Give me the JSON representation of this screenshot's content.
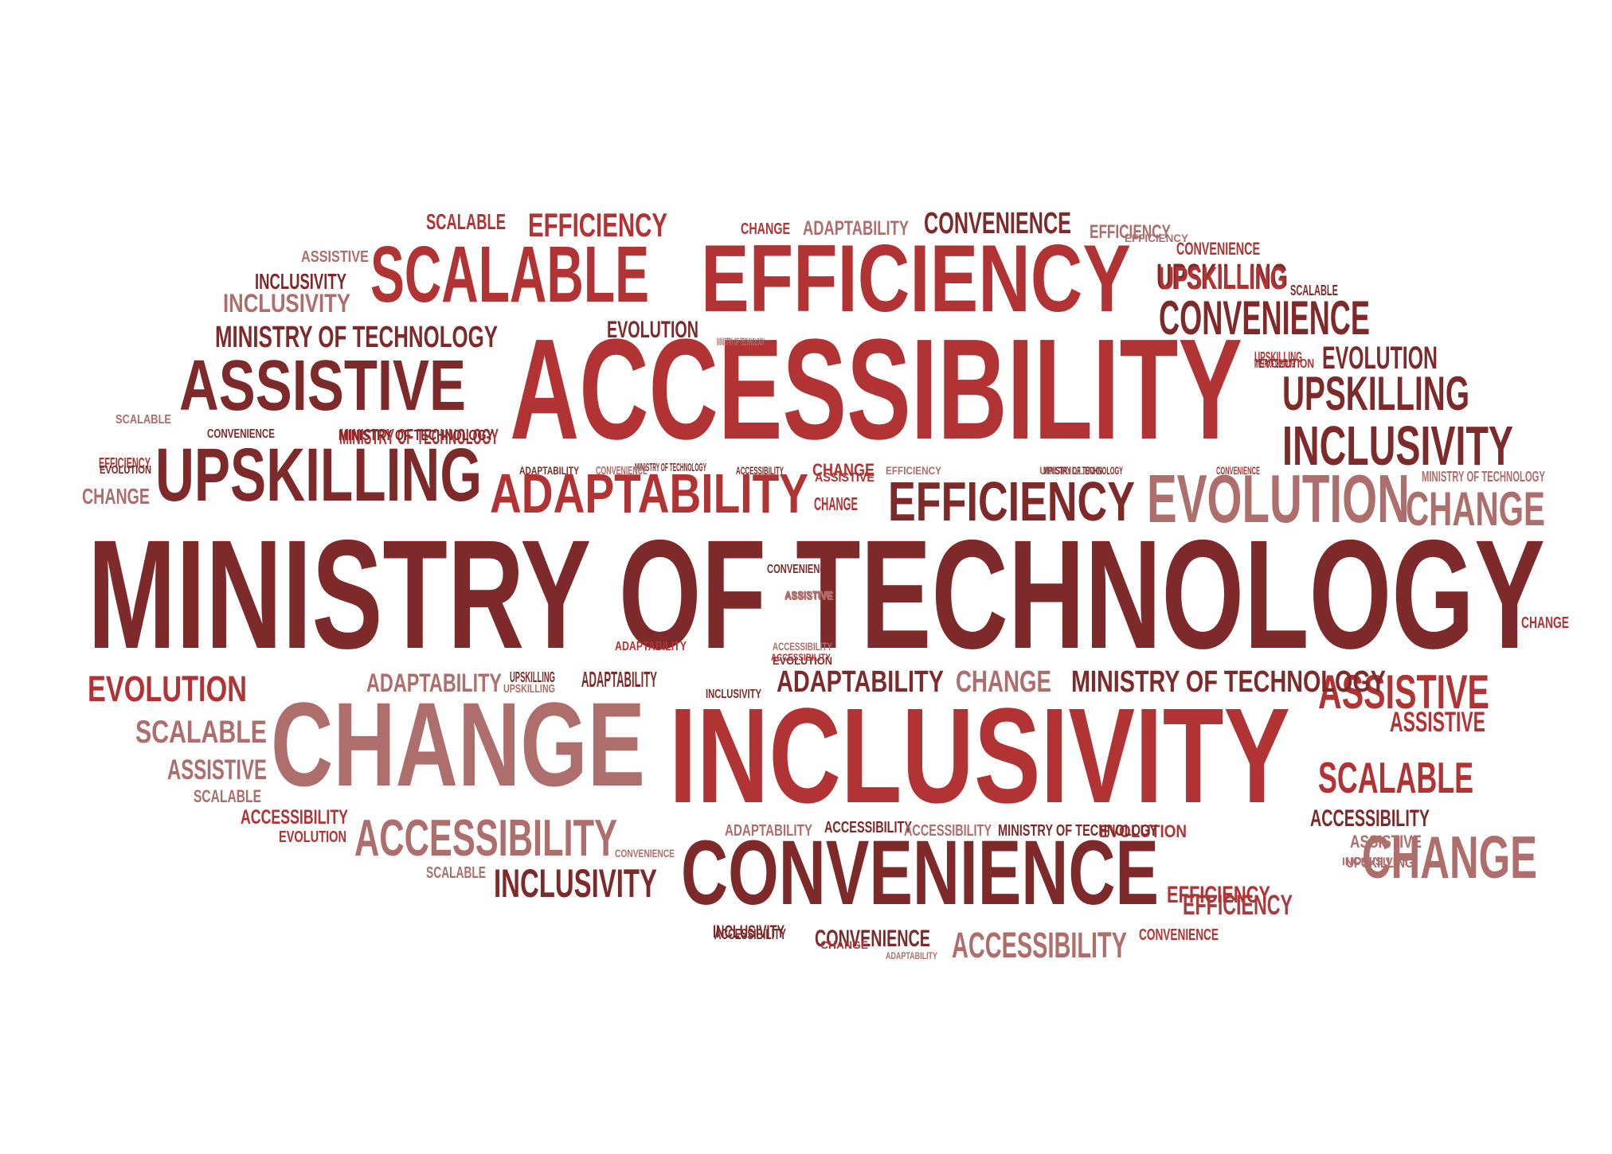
{
  "colors": {
    "background": "#ffffff",
    "dark": "#7f2a2a",
    "red": "#b23333",
    "mid": "#a53f42",
    "pink": "#ad6e6c"
  },
  "words": [
    {
      "text": "MINISTRY OF TECHNOLOGY",
      "color": "dark"
    },
    {
      "text": "ACCESSIBILITY",
      "color": "red"
    },
    {
      "text": "INCLUSIVITY",
      "color": "red"
    },
    {
      "text": "CHANGE",
      "color": "pink"
    },
    {
      "text": "EFFICIENCY",
      "color": "red"
    },
    {
      "text": "CONVENIENCE",
      "color": "dark"
    },
    {
      "text": "SCALABLE",
      "color": "red"
    },
    {
      "text": "ASSISTIVE",
      "color": "dark"
    },
    {
      "text": "UPSKILLING",
      "color": "dark"
    },
    {
      "text": "ADAPTABILITY",
      "color": "red"
    },
    {
      "text": "EVOLUTION",
      "color": "pink"
    },
    {
      "text": "EFFICIENCY",
      "color": "dark"
    },
    {
      "text": "CHANGE",
      "color": "pink"
    },
    {
      "text": "ACCESSIBILITY",
      "color": "pink"
    },
    {
      "text": "CONVENIENCE",
      "color": "dark"
    },
    {
      "text": "INCLUSIVITY",
      "color": "dark"
    },
    {
      "text": "UPSKILLING",
      "color": "dark"
    },
    {
      "text": "CHANGE",
      "color": "pink"
    },
    {
      "text": "EVOLUTION",
      "color": "dark"
    },
    {
      "text": "ASSISTIVE",
      "color": "red"
    },
    {
      "text": "ASSISTIVE",
      "color": "red"
    },
    {
      "text": "SCALABLE",
      "color": "red"
    },
    {
      "text": "MINISTRY OF TECHNOLOGY",
      "color": "dark"
    },
    {
      "text": "ADAPTABILITY",
      "color": "dark"
    },
    {
      "text": "MINISTRY OF TECHNOLOGY",
      "color": "dark"
    },
    {
      "text": "EVOLUTION",
      "color": "red"
    },
    {
      "text": "SCALABLE",
      "color": "pink"
    },
    {
      "text": "INCLUSIVITY",
      "color": "dark"
    },
    {
      "text": "UPSKILLING",
      "color": "dark"
    },
    {
      "text": "EFFICIENCY",
      "color": "mid"
    },
    {
      "text": "CONVENIENCE",
      "color": "dark"
    },
    {
      "text": "ACCESSIBILITY",
      "color": "pink"
    },
    {
      "text": "ADAPTABILITY",
      "color": "pink"
    },
    {
      "text": "CHANGE",
      "color": "pink"
    },
    {
      "text": "ACCESSIBILITY",
      "color": "dark"
    },
    {
      "text": "ASSISTIVE",
      "color": "pink"
    },
    {
      "text": "INCLUSIVITY",
      "color": "pink"
    },
    {
      "text": "SCALABLE",
      "color": "red"
    },
    {
      "text": "EFFICIENCY",
      "color": "red"
    },
    {
      "text": "CHANGE",
      "color": "red"
    },
    {
      "text": "CONVENIENCE",
      "color": "dark"
    },
    {
      "text": "ADAPTABILITY",
      "color": "pink"
    },
    {
      "text": "EVOLUTION",
      "color": "dark"
    },
    {
      "text": "EFFICIENCY",
      "color": "pink"
    },
    {
      "text": "CONVENIENCE",
      "color": "red"
    },
    {
      "text": "UPSKILLING",
      "color": "red"
    },
    {
      "text": "SCALABLE",
      "color": "dark"
    },
    {
      "text": "ASSISTIVE",
      "color": "pink"
    },
    {
      "text": "INCLUSIVITY",
      "color": "dark"
    },
    {
      "text": "ACCESSIBILITY",
      "color": "red"
    },
    {
      "text": "EVOLUTION",
      "color": "red"
    },
    {
      "text": "SCALABLE",
      "color": "pink"
    },
    {
      "text": "MINISTRY OF TECHNOLOGY",
      "color": "red"
    },
    {
      "text": "CHANGE",
      "color": "red"
    },
    {
      "text": "CHANGE",
      "color": "pink"
    },
    {
      "text": "UPSKILLING",
      "color": "red"
    },
    {
      "text": "ADAPTABILITY",
      "color": "dark"
    },
    {
      "text": "INCLUSIVITY",
      "color": "dark"
    },
    {
      "text": "CONVENIENCE",
      "color": "red"
    },
    {
      "text": "SCALABLE",
      "color": "pink"
    },
    {
      "text": "ACCESSIBILITY",
      "color": "dark"
    },
    {
      "text": "UPSKILLING",
      "color": "pink"
    },
    {
      "text": "EVOLUTION",
      "color": "red"
    },
    {
      "text": "EFFICIENCY",
      "color": "red"
    },
    {
      "text": "ASSISTIVE",
      "color": "pink"
    },
    {
      "text": "SCALABLE",
      "color": "pink"
    },
    {
      "text": "CHANGE",
      "color": "red"
    },
    {
      "text": "ASSISTIVE",
      "color": "pink"
    },
    {
      "text": "MINISTRY OF TECHNOLOGY",
      "color": "pink"
    },
    {
      "text": "CONVENIENCE",
      "color": "dark"
    },
    {
      "text": "UPSKILLING",
      "color": "dark"
    },
    {
      "text": "MINISTRY OF TECHNOLOGY",
      "color": "dark"
    },
    {
      "text": "EVOLUTION",
      "color": "red"
    },
    {
      "text": "EFFICIENCY",
      "color": "red"
    },
    {
      "text": "CHANGE",
      "color": "red"
    },
    {
      "text": "MINISTRY OF TECHNOLOGY",
      "color": "dark"
    },
    {
      "text": "ADAPTABILITY",
      "color": "pink"
    },
    {
      "text": "ACCESSIBILITY",
      "color": "pink"
    },
    {
      "text": "INCLUSIVITY",
      "color": "dark"
    },
    {
      "text": "ACCESSIBILITY",
      "color": "pink"
    },
    {
      "text": "MINISTRY OF TECHNOLOGY",
      "color": "dark"
    },
    {
      "text": "CONVENIENCE",
      "color": "pink"
    },
    {
      "text": "CONVENIENCE",
      "color": "dark"
    },
    {
      "text": "ASSISTIVE",
      "color": "pink"
    },
    {
      "text": "EFFICIENCY",
      "color": "pink"
    },
    {
      "text": "EVOLUTION",
      "color": "dark"
    },
    {
      "text": "ASSISTIVE",
      "color": "red"
    },
    {
      "text": "ACCESSIBILITY",
      "color": "dark"
    },
    {
      "text": "ADAPTABILITY",
      "color": "dark"
    },
    {
      "text": "UPSKILLING",
      "color": "pink"
    },
    {
      "text": "UPSKILLING",
      "color": "pink"
    },
    {
      "text": "INCLUSIVITY",
      "color": "pink"
    },
    {
      "text": "CONVENIENCE",
      "color": "pink"
    },
    {
      "text": "ADAPTABILITY",
      "color": "pink"
    },
    {
      "text": "ACCESSIBILITY",
      "color": "dark"
    },
    {
      "text": "EVOLUTION",
      "color": "dark"
    },
    {
      "text": "MINISTRY OF TECHNOLOGY",
      "color": "dark"
    },
    {
      "text": "MINISTRY OF TECHNOLOGY",
      "color": "pink"
    },
    {
      "text": "MINISTRY OF TECHNOLOGY",
      "color": "dark"
    },
    {
      "text": "EFFICIENCY",
      "color": "pink"
    },
    {
      "text": "CONVENIENCE",
      "color": "red"
    },
    {
      "text": "ADAPTABILITY",
      "color": "red"
    },
    {
      "text": "ACCESSIBILITY",
      "color": "red"
    },
    {
      "text": "ASSISTIVE",
      "color": "pink"
    },
    {
      "text": "CHANGE",
      "color": "red"
    }
  ]
}
